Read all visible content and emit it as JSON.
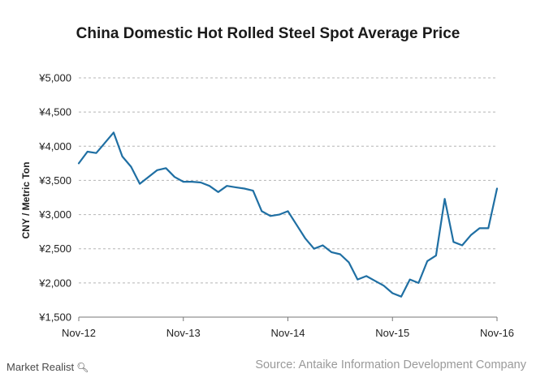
{
  "chart_data": {
    "type": "line",
    "title": "China Domestic Hot Rolled Steel Spot Average Price",
    "ylabel": "CNY / Metric Ton",
    "xlabel": "",
    "ylim": [
      1500,
      5000
    ],
    "yticks": [
      1500,
      2000,
      2500,
      3000,
      3500,
      4000,
      4500,
      5000
    ],
    "ytick_labels": [
      "¥1,500",
      "¥2,000",
      "¥2,500",
      "¥3,000",
      "¥3,500",
      "¥4,000",
      "¥4,500",
      "¥5,000"
    ],
    "xlim": [
      "2012-11",
      "2016-11"
    ],
    "xticks": [
      "Nov-12",
      "Nov-13",
      "Nov-14",
      "Nov-15",
      "Nov-16"
    ],
    "grid": true,
    "line_color": "#1f6fa3",
    "series": [
      {
        "x": [
          "2012-11",
          "2012-12",
          "2013-01",
          "2013-02",
          "2013-03",
          "2013-04",
          "2013-05",
          "2013-06",
          "2013-07",
          "2013-08",
          "2013-09",
          "2013-10",
          "2013-11",
          "2013-12",
          "2014-01",
          "2014-02",
          "2014-03",
          "2014-04",
          "2014-05",
          "2014-06",
          "2014-07",
          "2014-08",
          "2014-09",
          "2014-10",
          "2014-11",
          "2014-12",
          "2015-01",
          "2015-02",
          "2015-03",
          "2015-04",
          "2015-05",
          "2015-06",
          "2015-07",
          "2015-08",
          "2015-09",
          "2015-10",
          "2015-11",
          "2015-12",
          "2016-01",
          "2016-02",
          "2016-03",
          "2016-04",
          "2016-05",
          "2016-06",
          "2016-07",
          "2016-08",
          "2016-09",
          "2016-10",
          "2016-11"
        ],
        "values": [
          3750,
          3920,
          3900,
          4050,
          4200,
          3850,
          3700,
          3450,
          3550,
          3650,
          3680,
          3550,
          3480,
          3480,
          3470,
          3420,
          3330,
          3420,
          3400,
          3380,
          3350,
          3050,
          2980,
          3000,
          3050,
          2850,
          2650,
          2500,
          2550,
          2450,
          2420,
          2300,
          2050,
          2100,
          2030,
          1960,
          1850,
          1800,
          2050,
          2000,
          2320,
          2400,
          3230,
          2600,
          2550,
          2700,
          2800,
          2800,
          3380
        ]
      }
    ]
  },
  "source": "Source: Antaike Information Development Company",
  "brand": "Market Realist",
  "brand_icon": "magnifier-icon"
}
